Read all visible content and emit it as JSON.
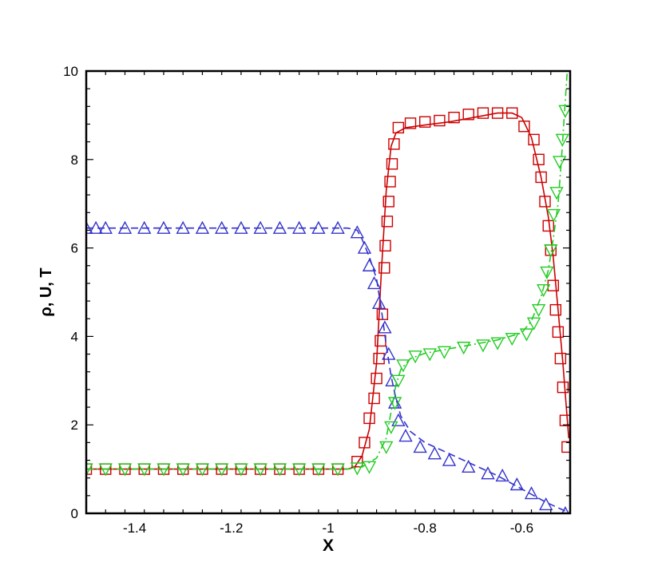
{
  "chart_data": {
    "type": "line",
    "title": "",
    "xlabel": "X",
    "ylabel": "ρ, U, T",
    "xlim": [
      -1.5,
      -0.5
    ],
    "ylim": [
      0,
      10
    ],
    "x_ticks": [
      -1.4,
      -1.2,
      -1,
      -0.8,
      -0.6
    ],
    "x_tick_labels": [
      "-1.4",
      "-1.2",
      "-1",
      "-0.8",
      "-0.6"
    ],
    "y_ticks": [
      0,
      2,
      4,
      6,
      8,
      10
    ],
    "y_tick_labels": [
      "0",
      "2",
      "4",
      "6",
      "8",
      "10"
    ],
    "grid": false,
    "legend": "none",
    "series": [
      {
        "color": "#cc0000",
        "marker": "square",
        "line_style": "solid",
        "line": [
          [
            -1.5,
            1.0
          ],
          [
            -0.96,
            1.0
          ],
          [
            -0.945,
            1.05
          ],
          [
            -0.93,
            1.3
          ],
          [
            -0.915,
            1.9
          ],
          [
            -0.9,
            3.4
          ],
          [
            -0.89,
            5.5
          ],
          [
            -0.88,
            7.3
          ],
          [
            -0.87,
            8.3
          ],
          [
            -0.86,
            8.6
          ],
          [
            -0.84,
            8.72
          ],
          [
            -0.8,
            8.78
          ],
          [
            -0.75,
            8.85
          ],
          [
            -0.7,
            8.95
          ],
          [
            -0.65,
            9.05
          ],
          [
            -0.62,
            9.05
          ],
          [
            -0.6,
            8.95
          ],
          [
            -0.58,
            8.5
          ],
          [
            -0.56,
            7.6
          ],
          [
            -0.545,
            6.7
          ],
          [
            -0.535,
            5.8
          ],
          [
            -0.525,
            4.6
          ],
          [
            -0.515,
            3.4
          ],
          [
            -0.508,
            2.4
          ],
          [
            -0.503,
            1.7
          ]
        ],
        "markers": [
          [
            -1.5,
            1.0
          ],
          [
            -1.46,
            1.0
          ],
          [
            -1.42,
            1.0
          ],
          [
            -1.38,
            1.0
          ],
          [
            -1.34,
            1.0
          ],
          [
            -1.3,
            1.0
          ],
          [
            -1.26,
            1.0
          ],
          [
            -1.22,
            1.0
          ],
          [
            -1.18,
            1.0
          ],
          [
            -1.14,
            1.0
          ],
          [
            -1.1,
            1.0
          ],
          [
            -1.06,
            1.0
          ],
          [
            -1.02,
            1.0
          ],
          [
            -0.98,
            1.0
          ],
          [
            -0.94,
            1.17
          ],
          [
            -0.925,
            1.6
          ],
          [
            -0.915,
            2.15
          ],
          [
            -0.905,
            2.6
          ],
          [
            -0.9,
            3.05
          ],
          [
            -0.895,
            3.5
          ],
          [
            -0.892,
            3.9
          ],
          [
            -0.888,
            4.5
          ],
          [
            -0.884,
            5.55
          ],
          [
            -0.882,
            6.05
          ],
          [
            -0.878,
            6.6
          ],
          [
            -0.875,
            7.05
          ],
          [
            -0.872,
            7.5
          ],
          [
            -0.868,
            7.9
          ],
          [
            -0.864,
            8.35
          ],
          [
            -0.855,
            8.72
          ],
          [
            -0.83,
            8.82
          ],
          [
            -0.8,
            8.85
          ],
          [
            -0.77,
            8.88
          ],
          [
            -0.74,
            8.95
          ],
          [
            -0.71,
            9.02
          ],
          [
            -0.68,
            9.05
          ],
          [
            -0.65,
            9.05
          ],
          [
            -0.62,
            9.05
          ],
          [
            -0.595,
            8.75
          ],
          [
            -0.575,
            8.45
          ],
          [
            -0.565,
            8.0
          ],
          [
            -0.56,
            7.6
          ],
          [
            -0.552,
            7.05
          ],
          [
            -0.545,
            6.5
          ],
          [
            -0.54,
            5.95
          ],
          [
            -0.535,
            5.15
          ],
          [
            -0.53,
            4.6
          ],
          [
            -0.525,
            4.1
          ],
          [
            -0.52,
            3.5
          ],
          [
            -0.515,
            2.85
          ],
          [
            -0.51,
            2.1
          ],
          [
            -0.506,
            1.5
          ]
        ]
      },
      {
        "color": "#3333cc",
        "marker": "triangle-up",
        "line_style": "dashed",
        "line": [
          [
            -1.5,
            6.45
          ],
          [
            -0.96,
            6.45
          ],
          [
            -0.94,
            6.4
          ],
          [
            -0.93,
            6.2
          ],
          [
            -0.915,
            5.8
          ],
          [
            -0.9,
            5.3
          ],
          [
            -0.89,
            4.6
          ],
          [
            -0.88,
            3.8
          ],
          [
            -0.87,
            3.1
          ],
          [
            -0.86,
            2.6
          ],
          [
            -0.85,
            2.2
          ],
          [
            -0.83,
            1.85
          ],
          [
            -0.8,
            1.6
          ],
          [
            -0.75,
            1.35
          ],
          [
            -0.7,
            1.1
          ],
          [
            -0.65,
            0.85
          ],
          [
            -0.6,
            0.55
          ],
          [
            -0.55,
            0.25
          ],
          [
            -0.5,
            0.0
          ]
        ],
        "markers": [
          [
            -1.5,
            6.45
          ],
          [
            -1.48,
            6.45
          ],
          [
            -1.46,
            6.45
          ],
          [
            -1.42,
            6.45
          ],
          [
            -1.38,
            6.45
          ],
          [
            -1.34,
            6.45
          ],
          [
            -1.3,
            6.45
          ],
          [
            -1.26,
            6.45
          ],
          [
            -1.22,
            6.45
          ],
          [
            -1.18,
            6.45
          ],
          [
            -1.14,
            6.45
          ],
          [
            -1.1,
            6.45
          ],
          [
            -1.06,
            6.45
          ],
          [
            -1.02,
            6.45
          ],
          [
            -0.98,
            6.45
          ],
          [
            -0.94,
            6.35
          ],
          [
            -0.925,
            6.0
          ],
          [
            -0.915,
            5.6
          ],
          [
            -0.905,
            5.2
          ],
          [
            -0.895,
            4.75
          ],
          [
            -0.883,
            4.2
          ],
          [
            -0.875,
            3.6
          ],
          [
            -0.868,
            3.0
          ],
          [
            -0.862,
            2.5
          ],
          [
            -0.855,
            2.1
          ],
          [
            -0.84,
            1.75
          ],
          [
            -0.81,
            1.5
          ],
          [
            -0.78,
            1.35
          ],
          [
            -0.75,
            1.2
          ],
          [
            -0.71,
            1.05
          ],
          [
            -0.67,
            0.9
          ],
          [
            -0.64,
            0.85
          ],
          [
            -0.61,
            0.65
          ],
          [
            -0.58,
            0.45
          ],
          [
            -0.55,
            0.2
          ],
          [
            -0.51,
            0.0
          ]
        ]
      },
      {
        "color": "#22cc22",
        "marker": "triangle-down",
        "line_style": "dashdot",
        "line": [
          [
            -1.5,
            1.0
          ],
          [
            -0.96,
            1.0
          ],
          [
            -0.93,
            1.05
          ],
          [
            -0.9,
            1.25
          ],
          [
            -0.88,
            1.7
          ],
          [
            -0.87,
            2.3
          ],
          [
            -0.86,
            2.9
          ],
          [
            -0.85,
            3.25
          ],
          [
            -0.83,
            3.5
          ],
          [
            -0.8,
            3.62
          ],
          [
            -0.75,
            3.72
          ],
          [
            -0.7,
            3.82
          ],
          [
            -0.65,
            3.92
          ],
          [
            -0.6,
            4.08
          ],
          [
            -0.58,
            4.35
          ],
          [
            -0.56,
            4.9
          ],
          [
            -0.545,
            5.5
          ],
          [
            -0.535,
            6.2
          ],
          [
            -0.525,
            7.0
          ],
          [
            -0.518,
            8.0
          ],
          [
            -0.512,
            9.0
          ],
          [
            -0.506,
            10.0
          ]
        ],
        "markers": [
          [
            -1.5,
            1.0
          ],
          [
            -1.46,
            1.0
          ],
          [
            -1.42,
            1.0
          ],
          [
            -1.38,
            1.0
          ],
          [
            -1.34,
            1.0
          ],
          [
            -1.3,
            1.0
          ],
          [
            -1.26,
            1.0
          ],
          [
            -1.22,
            1.0
          ],
          [
            -1.18,
            1.0
          ],
          [
            -1.14,
            1.0
          ],
          [
            -1.1,
            1.0
          ],
          [
            -1.06,
            1.0
          ],
          [
            -1.02,
            1.0
          ],
          [
            -0.98,
            1.0
          ],
          [
            -0.94,
            1.02
          ],
          [
            -0.915,
            1.05
          ],
          [
            -0.88,
            1.5
          ],
          [
            -0.87,
            1.95
          ],
          [
            -0.862,
            2.5
          ],
          [
            -0.855,
            3.0
          ],
          [
            -0.845,
            3.35
          ],
          [
            -0.82,
            3.55
          ],
          [
            -0.79,
            3.6
          ],
          [
            -0.76,
            3.65
          ],
          [
            -0.72,
            3.75
          ],
          [
            -0.68,
            3.8
          ],
          [
            -0.65,
            3.85
          ],
          [
            -0.62,
            3.95
          ],
          [
            -0.59,
            4.05
          ],
          [
            -0.575,
            4.3
          ],
          [
            -0.565,
            4.6
          ],
          [
            -0.555,
            5.05
          ],
          [
            -0.548,
            5.45
          ],
          [
            -0.54,
            5.95
          ],
          [
            -0.534,
            6.75
          ],
          [
            -0.528,
            7.25
          ],
          [
            -0.522,
            7.95
          ],
          [
            -0.516,
            8.45
          ],
          [
            -0.51,
            9.1
          ]
        ]
      }
    ]
  }
}
